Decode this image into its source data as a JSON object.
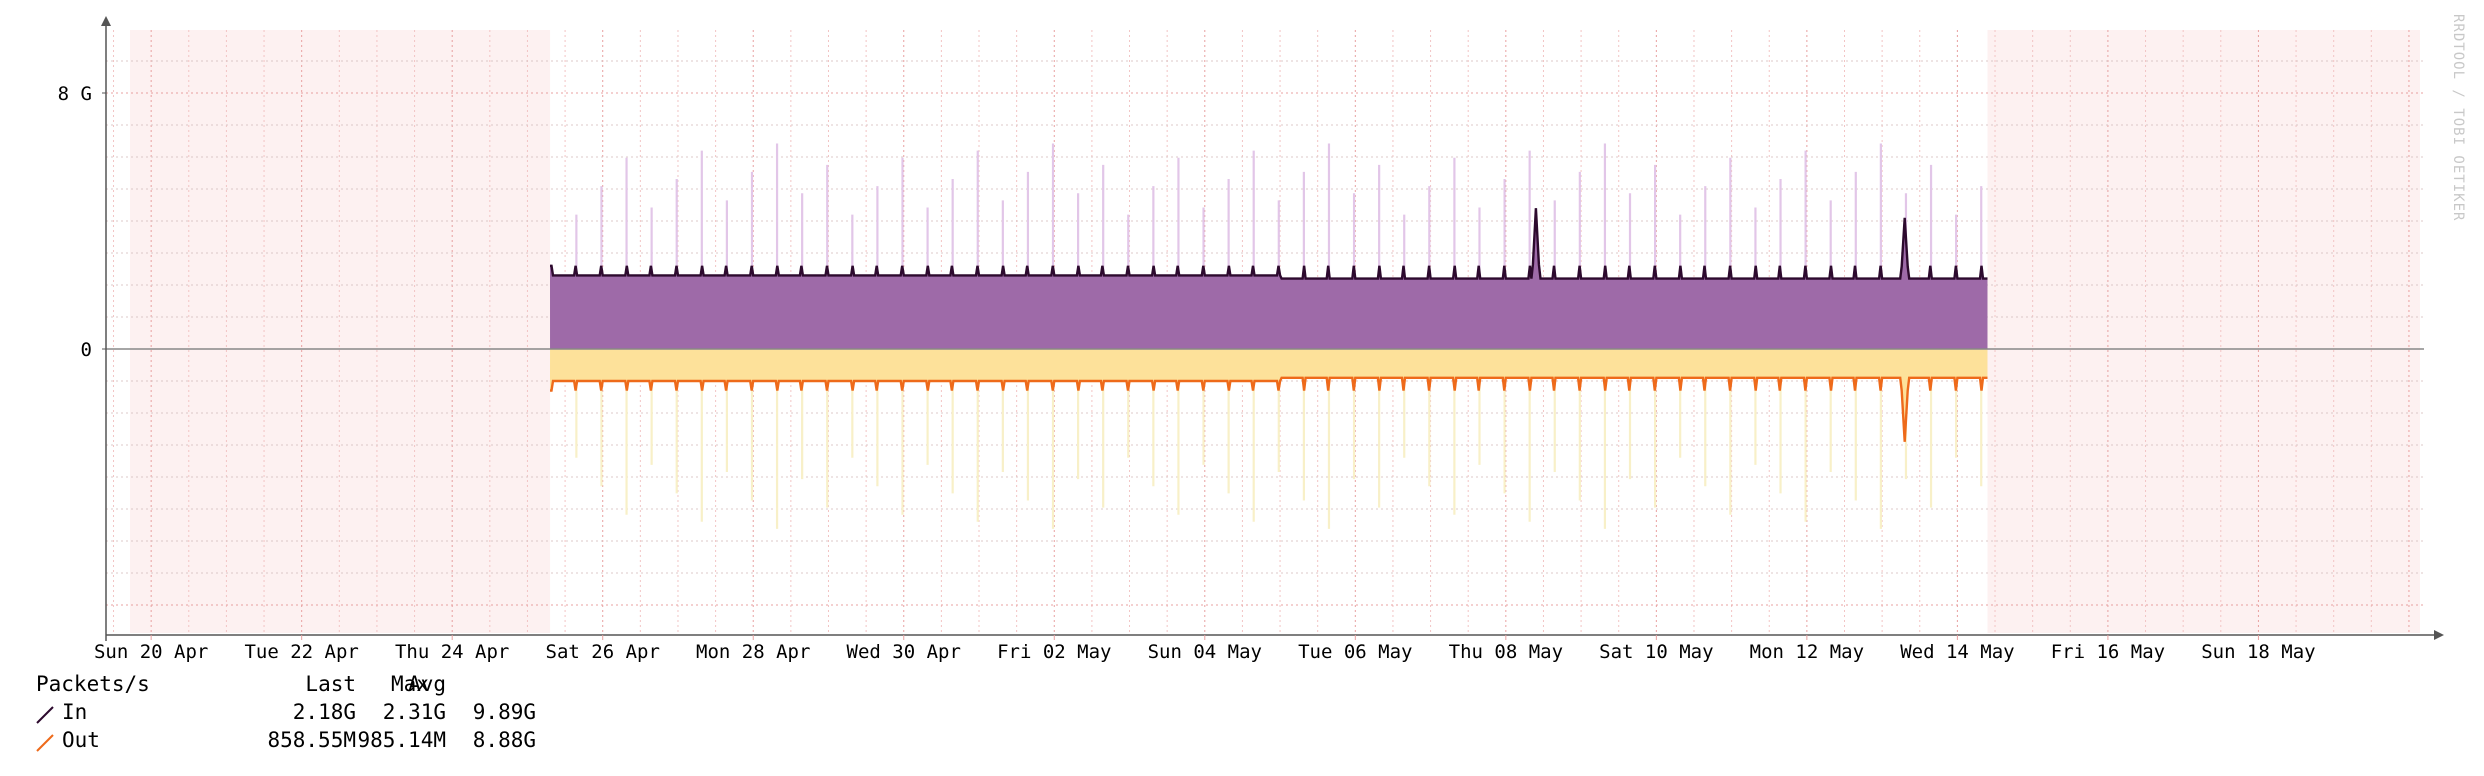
{
  "chart_data": {
    "type": "area",
    "watermark": "RRDTOOL / TOBI OETIKER",
    "y_ticks": [
      {
        "value": 8000000000,
        "label": "8 G"
      },
      {
        "value": 0,
        "label": "0"
      }
    ],
    "ylim": [
      -9000000000,
      10000000000
    ],
    "x_ticks": [
      "Sun 20 Apr",
      "Tue 22 Apr",
      "Thu 24 Apr",
      "Sat 26 Apr",
      "Mon 28 Apr",
      "Wed 30 Apr",
      "Fri 02 May",
      "Sun 04 May",
      "Tue 06 May",
      "Thu 08 May",
      "Sat 10 May",
      "Mon 12 May",
      "Wed 14 May",
      "Fri 16 May",
      "Sun 18 May"
    ],
    "x_range_days": [
      -0.6,
      30.2
    ],
    "data_span_days": [
      5.3,
      24.4
    ],
    "series": [
      {
        "name": "In",
        "color": "#2d0a2e",
        "fill": "#9e6aa8",
        "max_color": "#e2c6e8",
        "direction": "up",
        "baseline": 2300000000,
        "baseline_late": 2200000000,
        "spike_top": 2600000000,
        "notable_peaks": [
          {
            "day": 18.4,
            "value": 4400000000
          },
          {
            "day": 23.3,
            "value": 4100000000
          }
        ]
      },
      {
        "name": "Out",
        "color": "#ee6a1a",
        "fill": "#fde19a",
        "max_color": "#f8f0c8",
        "direction": "down",
        "baseline": 1000000000,
        "baseline_late": 900000000,
        "spike_top": 1300000000,
        "notable_peaks": [
          {
            "day": 23.3,
            "value": 2900000000
          }
        ]
      }
    ]
  },
  "legend": {
    "header": {
      "label": "Packets/s",
      "last": "Last",
      "avg": "Avg",
      "max": "Max"
    },
    "rows": [
      {
        "name": "In",
        "last": "2.18G",
        "avg": "2.31G",
        "max": "9.89G",
        "color": "#2d0a2e"
      },
      {
        "name": "Out",
        "last": "858.55M",
        "avg": "985.14M",
        "max": "8.88G",
        "color": "#ee6a1a"
      }
    ]
  }
}
